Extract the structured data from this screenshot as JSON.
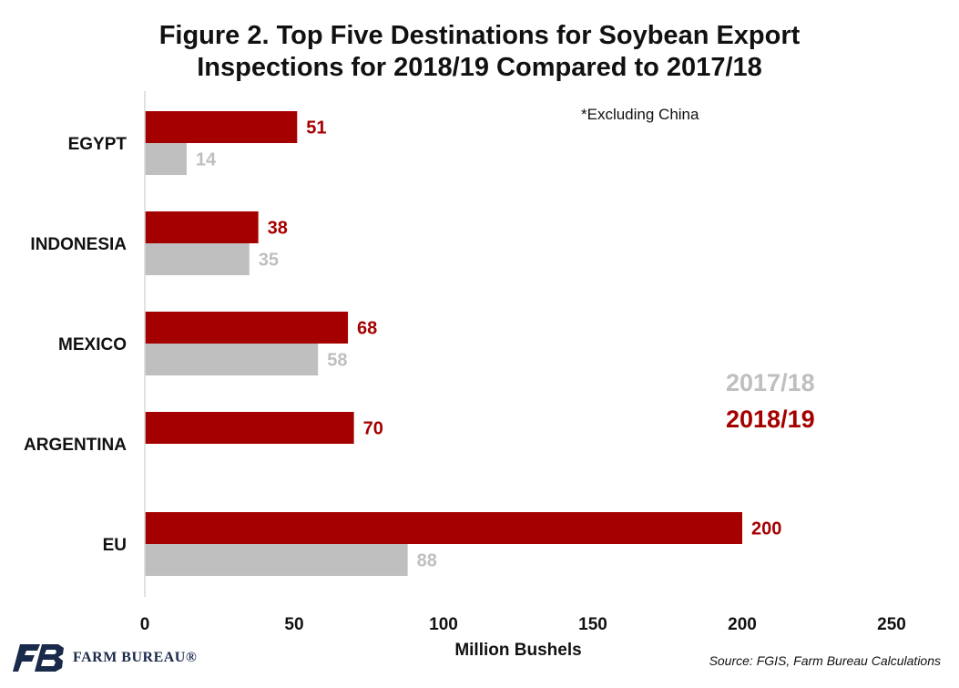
{
  "title_lines": [
    "Figure 2. Top Five Destinations for Soybean Export",
    "Inspections for 2018/19 Compared to 2017/18"
  ],
  "note": "*Excluding China",
  "legend": {
    "prev": "2017/18",
    "curr": "2018/19"
  },
  "source": "Source: FGIS, Farm Bureau Calculations",
  "logo_text": "FARM BUREAU®",
  "colors": {
    "curr": "#a50000",
    "prev": "#bfbfbf"
  },
  "chart_data": {
    "type": "bar",
    "orientation": "horizontal",
    "categories": [
      "EGYPT",
      "INDONESIA",
      "MEXICO",
      "ARGENTINA",
      "EU"
    ],
    "series": [
      {
        "name": "2018/19",
        "values": [
          51,
          38,
          68,
          70,
          200
        ]
      },
      {
        "name": "2017/18",
        "values": [
          14,
          35,
          58,
          null,
          88
        ]
      }
    ],
    "xlabel": "Million Bushels",
    "xlim": [
      0,
      250
    ],
    "xticks": [
      0,
      50,
      100,
      150,
      200,
      250
    ],
    "grid": false,
    "legend_position": "right"
  }
}
